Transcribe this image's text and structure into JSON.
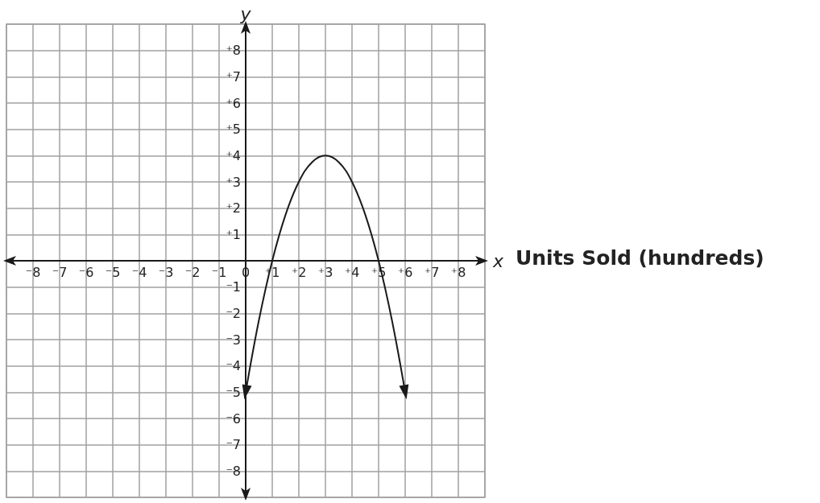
{
  "chart_data": {
    "type": "line",
    "xlabel": "x",
    "ylabel": "y",
    "annotations": [
      "Units Sold (hundreds)"
    ],
    "x": [
      0,
      0.5,
      1,
      1.5,
      2,
      2.5,
      3,
      3.5,
      4,
      4.5,
      5,
      5.5,
      6
    ],
    "series": [
      {
        "color": "#1a1a1a",
        "values": [
          -5,
          -2.25,
          0,
          1.75,
          3,
          3.75,
          4,
          3.75,
          3,
          1.75,
          0,
          -2.25,
          -5
        ]
      }
    ],
    "xlim": [
      -9,
      9
    ],
    "ylim": [
      -9,
      9
    ],
    "xticks": [
      {
        "value": -8,
        "label": "⁻8"
      },
      {
        "value": -7,
        "label": "⁻7"
      },
      {
        "value": -6,
        "label": "⁻6"
      },
      {
        "value": -5,
        "label": "⁻5"
      },
      {
        "value": -4,
        "label": "⁻4"
      },
      {
        "value": -3,
        "label": "⁻3"
      },
      {
        "value": -2,
        "label": "⁻2"
      },
      {
        "value": -1,
        "label": "⁻1"
      },
      0,
      {
        "value": 1,
        "label": "⁺1"
      },
      {
        "value": 2,
        "label": "⁺2"
      },
      {
        "value": 3,
        "label": "⁺3"
      },
      {
        "value": 4,
        "label": "⁺4"
      },
      {
        "value": 5,
        "label": "⁺5"
      },
      {
        "value": 6,
        "label": "⁺6"
      },
      {
        "value": 7,
        "label": "⁺7"
      },
      {
        "value": 8,
        "label": "⁺8"
      }
    ],
    "yticks": [
      {
        "value": -8,
        "label": "⁻8"
      },
      {
        "value": -7,
        "label": "⁻7"
      },
      {
        "value": -6,
        "label": "⁻6"
      },
      {
        "value": -5,
        "label": "⁻5"
      },
      {
        "value": -4,
        "label": "⁻4"
      },
      {
        "value": -3,
        "label": "⁻3"
      },
      {
        "value": -2,
        "label": "⁻2"
      },
      {
        "value": -1,
        "label": "⁻1"
      },
      {
        "value": 1,
        "label": "⁺1"
      },
      {
        "value": 2,
        "label": "⁺2"
      },
      {
        "value": 3,
        "label": "⁺3"
      },
      {
        "value": 4,
        "label": "⁺4"
      },
      {
        "value": 5,
        "label": "⁺5"
      },
      {
        "value": 6,
        "label": "⁺6"
      },
      {
        "value": 7,
        "label": "⁺7"
      },
      {
        "value": 8,
        "label": "⁺8"
      }
    ],
    "grid": true
  }
}
